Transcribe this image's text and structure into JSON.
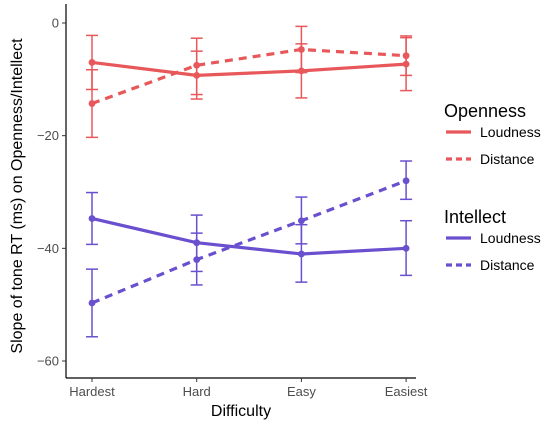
{
  "chart_data": {
    "type": "line",
    "xlabel": "Difficulty",
    "ylabel": "Slope of tone RT (ms) on Openness/Intellect",
    "categories": [
      "Hardest",
      "Hard",
      "Easy",
      "Easiest"
    ],
    "ylim": [
      -62,
      2
    ],
    "yticks": [
      0,
      -20,
      -40,
      -60
    ],
    "yticklabels": [
      "0",
      "−20",
      "−40",
      "−60"
    ],
    "grid": false,
    "legend_position": "right",
    "legend_groups": [
      {
        "title": "Openness",
        "color": "#e8585a",
        "entries": [
          {
            "label": "Loudness",
            "linestyle": "solid"
          },
          {
            "label": "Distance",
            "linestyle": "dashed"
          }
        ]
      },
      {
        "title": "Intellect",
        "color": "#6a50cf",
        "entries": [
          {
            "label": "Loudness",
            "linestyle": "solid"
          },
          {
            "label": "Distance",
            "linestyle": "dashed"
          }
        ]
      }
    ],
    "series": [
      {
        "group": "Openness",
        "name": "Loudness",
        "color": "#e8585a",
        "linestyle": "solid",
        "values": [
          -7.0,
          -9.3,
          -8.5,
          -7.3
        ],
        "err_low": [
          -11.8,
          -13.5,
          -13.3,
          -12.0
        ],
        "err_high": [
          -2.2,
          -5.0,
          -3.7,
          -2.6
        ]
      },
      {
        "group": "Openness",
        "name": "Distance",
        "color": "#e8585a",
        "linestyle": "dashed",
        "values": [
          -14.3,
          -7.5,
          -4.7,
          -5.8
        ],
        "err_low": [
          -20.3,
          -12.7,
          -8.8,
          -9.3
        ],
        "err_high": [
          -8.3,
          -2.7,
          -0.6,
          -2.3
        ]
      },
      {
        "group": "Intellect",
        "name": "Loudness",
        "color": "#6a50cf",
        "linestyle": "solid",
        "values": [
          -34.7,
          -39.0,
          -41.0,
          -40.0
        ],
        "err_low": [
          -39.3,
          -44.1,
          -46.0,
          -44.8
        ],
        "err_high": [
          -30.1,
          -34.1,
          -35.8,
          -35.1
        ]
      },
      {
        "group": "Intellect",
        "name": "Distance",
        "color": "#6a50cf",
        "linestyle": "dashed",
        "values": [
          -49.7,
          -42.0,
          -35.1,
          -28.0
        ],
        "err_low": [
          -55.7,
          -46.5,
          -39.2,
          -31.3
        ],
        "err_high": [
          -43.7,
          -37.3,
          -30.9,
          -24.5
        ]
      }
    ]
  }
}
